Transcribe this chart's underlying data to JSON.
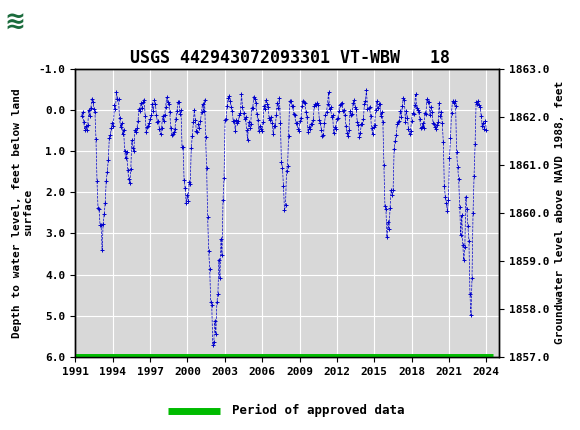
{
  "title": "USGS 442943072093301 VT-WBW   18",
  "ylabel_left": "Depth to water level, feet below land\nsurface",
  "ylabel_right": "Groundwater level above NAVD 1988, feet",
  "ylim_left": [
    6.0,
    -1.0
  ],
  "ylim_right": [
    1857.0,
    1863.0
  ],
  "xlim": [
    1991,
    2025
  ],
  "xticks": [
    1991,
    1994,
    1997,
    2000,
    2003,
    2006,
    2009,
    2012,
    2015,
    2018,
    2021,
    2024
  ],
  "yticks_left": [
    -1.0,
    0.0,
    1.0,
    2.0,
    3.0,
    4.0,
    5.0,
    6.0
  ],
  "yticks_right": [
    1857.0,
    1858.0,
    1859.0,
    1860.0,
    1861.0,
    1862.0,
    1863.0
  ],
  "header_color": "#1a6b3c",
  "data_color": "#0000cc",
  "approved_color": "#00bb00",
  "legend_label": "Period of approved data",
  "plot_bg_color": "#d8d8d8",
  "grid_color": "#ffffff",
  "title_fontsize": 12,
  "tick_fontsize": 8,
  "ylabel_fontsize": 8
}
